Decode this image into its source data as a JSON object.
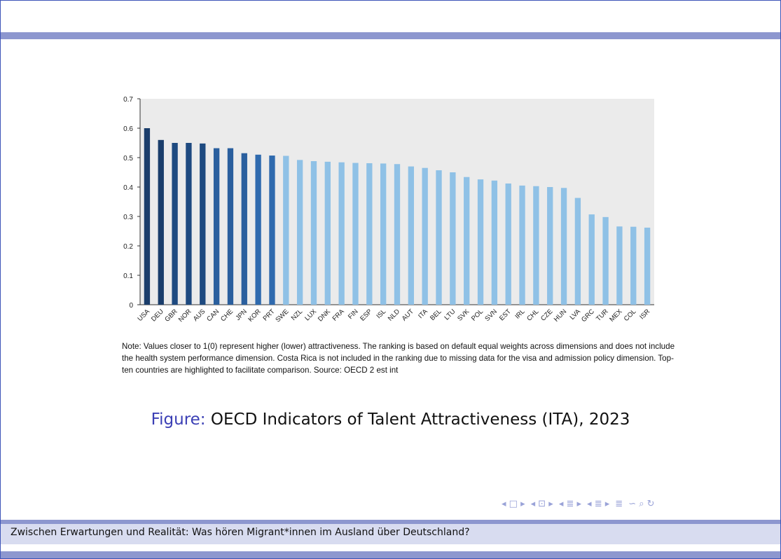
{
  "chart_data": {
    "type": "bar",
    "ylim": [
      0,
      0.7
    ],
    "y_ticks": [
      "0",
      "0.1",
      "0.2",
      "0.3",
      "0.4",
      "0.5",
      "0.6",
      "0.7"
    ],
    "grid": false,
    "categories": [
      "USA",
      "DEU",
      "GBR",
      "NOR",
      "AUS",
      "CAN",
      "CHE",
      "JPN",
      "KOR",
      "PRT",
      "SWE",
      "NZL",
      "LUX",
      "DNK",
      "FRA",
      "FIN",
      "ESP",
      "ISL",
      "NLD",
      "AUT",
      "ITA",
      "BEL",
      "LTU",
      "SVK",
      "POL",
      "SVN",
      "EST",
      "IRL",
      "CHL",
      "CZE",
      "HUN",
      "LVA",
      "GRC",
      "TUR",
      "MEX",
      "COL",
      "ISR"
    ],
    "values": [
      0.6,
      0.56,
      0.55,
      0.55,
      0.548,
      0.532,
      0.532,
      0.515,
      0.51,
      0.507,
      0.506,
      0.492,
      0.488,
      0.486,
      0.484,
      0.482,
      0.481,
      0.48,
      0.478,
      0.47,
      0.465,
      0.457,
      0.45,
      0.434,
      0.426,
      0.422,
      0.412,
      0.405,
      0.403,
      0.4,
      0.397,
      0.363,
      0.307,
      0.298,
      0.266,
      0.265,
      0.262
    ],
    "colors": [
      "#1a3d6b",
      "#1a3d6b",
      "#1e4a80",
      "#1e4a80",
      "#1e4a80",
      "#2a5f9e",
      "#2a5f9e",
      "#2a5f9e",
      "#2f6aae",
      "#2f6aae",
      "#8fc1e6",
      "#8fc1e6",
      "#8fc1e6",
      "#8fc1e6",
      "#8fc1e6",
      "#8fc1e6",
      "#8fc1e6",
      "#8fc1e6",
      "#8fc1e6",
      "#8fc1e6",
      "#8fc1e6",
      "#8fc1e6",
      "#8fc1e6",
      "#8fc1e6",
      "#8fc1e6",
      "#8fc1e6",
      "#8fc1e6",
      "#8fc1e6",
      "#8fc1e6",
      "#8fc1e6",
      "#8fc1e6",
      "#8fc1e6",
      "#8fc1e6",
      "#8fc1e6",
      "#8fc1e6",
      "#8fc1e6",
      "#8fc1e6"
    ],
    "plot_background": "#ebebeb",
    "title": "",
    "xlabel": "",
    "ylabel": ""
  },
  "note": "Note: Values closer to 1(0) represent higher (lower) attractiveness. The ranking is based on default equal weights across dimensions and does not include the health system performance dimension. Costa Rica is not included in the ranking due to missing data for the visa and admission policy dimension. Top-ten countries are highlighted to facilitate comparison. Source: OECD 2 est int",
  "caption": {
    "label": "Figure:",
    "text": "OECD Indicators of Talent Attractiveness (ITA), 2023"
  },
  "footer": {
    "text": "Zwischen Erwartungen und Realität: Was hören Migrant*innen im Ausland über Deutschland?"
  },
  "nav": {
    "first": "◂ □ ▸",
    "frame": "◂ ⊡ ▸",
    "section": "◂ ≣ ▸",
    "subsection": "◂ ≣ ▸",
    "align": "≣",
    "search": "∽ ⌕ ↻"
  },
  "theme": {
    "frame_color": "#3d55b8",
    "bar_color": "#8d97cf",
    "footer_bg": "#d8dcf0",
    "caption_label_color": "#3b3fb5"
  }
}
